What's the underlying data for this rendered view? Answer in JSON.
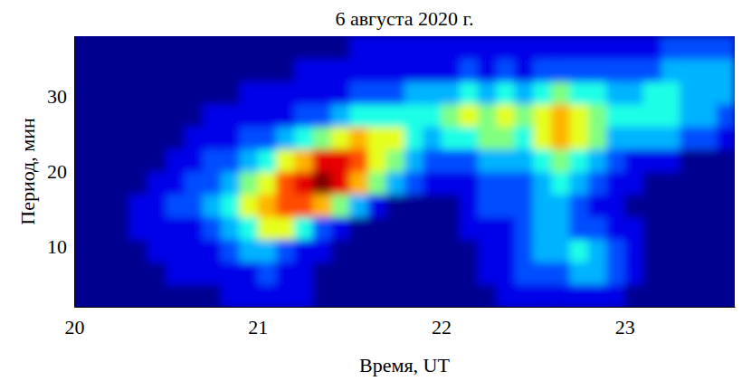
{
  "chart_data": {
    "type": "heatmap",
    "title": "6 августа 2020 г.",
    "x_label": "Время, UT",
    "y_label": "Период, мин",
    "color": "jet",
    "xlim": [
      20,
      23.6
    ],
    "ylim": [
      2,
      38
    ],
    "xticks": [
      20,
      21,
      22,
      23
    ],
    "yticks": [
      10,
      20,
      30
    ],
    "zlim": [
      0,
      10
    ],
    "x": [
      20.05,
      20.15,
      20.25,
      20.35,
      20.45,
      20.55,
      20.65,
      20.75,
      20.85,
      20.95,
      21.05,
      21.15,
      21.25,
      21.35,
      21.45,
      21.55,
      21.65,
      21.75,
      21.85,
      21.95,
      22.05,
      22.15,
      22.25,
      22.35,
      22.45,
      22.55,
      22.65,
      22.75,
      22.85,
      22.95,
      23.05,
      23.15,
      23.25,
      23.35,
      23.45,
      23.55
    ],
    "y": [
      3.5,
      6.5,
      9.5,
      12.5,
      15.5,
      18.5,
      21.5,
      24.5,
      27.5,
      30.5,
      33.5,
      36.5
    ],
    "values": [
      [
        0,
        0,
        0,
        0,
        0,
        0,
        0,
        0,
        1,
        1,
        1,
        1,
        1,
        0,
        0,
        0,
        0,
        0,
        0,
        0,
        0,
        0,
        0,
        1,
        1,
        1,
        1,
        1,
        1,
        1,
        0,
        0,
        0,
        0,
        0,
        0
      ],
      [
        0,
        0,
        0,
        0,
        0,
        1,
        1,
        1,
        1,
        1,
        2,
        1,
        1,
        0,
        0,
        0,
        0,
        0,
        0,
        0,
        0,
        0,
        1,
        1,
        2,
        2,
        2,
        3,
        3,
        2,
        1,
        0,
        0,
        0,
        0,
        0
      ],
      [
        0,
        0,
        0,
        0,
        1,
        1,
        1,
        1,
        2,
        3,
        3,
        2,
        1,
        1,
        0,
        0,
        0,
        0,
        0,
        0,
        0,
        0,
        1,
        1,
        2,
        3,
        3,
        4,
        3,
        2,
        1,
        0,
        0,
        0,
        0,
        0
      ],
      [
        0,
        0,
        0,
        1,
        1,
        1,
        1,
        2,
        3,
        4,
        6,
        6,
        4,
        2,
        1,
        0,
        0,
        0,
        0,
        0,
        0,
        1,
        1,
        1,
        2,
        3,
        3,
        2,
        2,
        1,
        1,
        0,
        0,
        0,
        0,
        0
      ],
      [
        0,
        0,
        0,
        1,
        1,
        2,
        2,
        3,
        4,
        6,
        7,
        8,
        8,
        7,
        5,
        3,
        1,
        0,
        0,
        0,
        0,
        1,
        2,
        2,
        2,
        3,
        3,
        2,
        1,
        1,
        0,
        0,
        0,
        0,
        0,
        0
      ],
      [
        0,
        0,
        0,
        0,
        1,
        1,
        2,
        2,
        3,
        5,
        6,
        8,
        9,
        10,
        9,
        7,
        5,
        3,
        2,
        1,
        1,
        1,
        2,
        2,
        2,
        3,
        4,
        3,
        2,
        1,
        1,
        0,
        0,
        0,
        0,
        0
      ],
      [
        0,
        0,
        0,
        0,
        0,
        1,
        1,
        2,
        2,
        3,
        4,
        6,
        7,
        9,
        9,
        8,
        6,
        5,
        3,
        2,
        2,
        2,
        3,
        3,
        3,
        4,
        5,
        4,
        3,
        2,
        1,
        1,
        1,
        0,
        0,
        0
      ],
      [
        0,
        0,
        0,
        0,
        0,
        0,
        1,
        1,
        1,
        2,
        2,
        3,
        4,
        5,
        6,
        7,
        6,
        6,
        4,
        3,
        4,
        4,
        5,
        5,
        4,
        6,
        7,
        6,
        5,
        3,
        3,
        3,
        3,
        2,
        2,
        1
      ],
      [
        0,
        0,
        0,
        0,
        0,
        0,
        0,
        1,
        1,
        1,
        1,
        1,
        2,
        2,
        3,
        4,
        4,
        4,
        4,
        4,
        5,
        6,
        5,
        6,
        5,
        6,
        7,
        6,
        5,
        4,
        4,
        4,
        4,
        3,
        3,
        2
      ],
      [
        0,
        0,
        0,
        0,
        0,
        0,
        0,
        0,
        0,
        1,
        1,
        1,
        1,
        1,
        1,
        2,
        2,
        2,
        3,
        3,
        3,
        4,
        3,
        4,
        3,
        4,
        5,
        4,
        4,
        3,
        3,
        4,
        4,
        3,
        3,
        3
      ],
      [
        0,
        0,
        0,
        0,
        0,
        0,
        0,
        0,
        0,
        0,
        0,
        0,
        1,
        1,
        1,
        1,
        1,
        1,
        1,
        1,
        1,
        2,
        1,
        2,
        1,
        2,
        2,
        2,
        2,
        2,
        2,
        2,
        3,
        3,
        3,
        3
      ],
      [
        0,
        0,
        0,
        0,
        0,
        0,
        0,
        0,
        0,
        0,
        0,
        0,
        0,
        0,
        0,
        1,
        1,
        1,
        1,
        1,
        1,
        1,
        1,
        1,
        1,
        1,
        1,
        1,
        1,
        1,
        1,
        1,
        2,
        2,
        2,
        2
      ]
    ]
  }
}
